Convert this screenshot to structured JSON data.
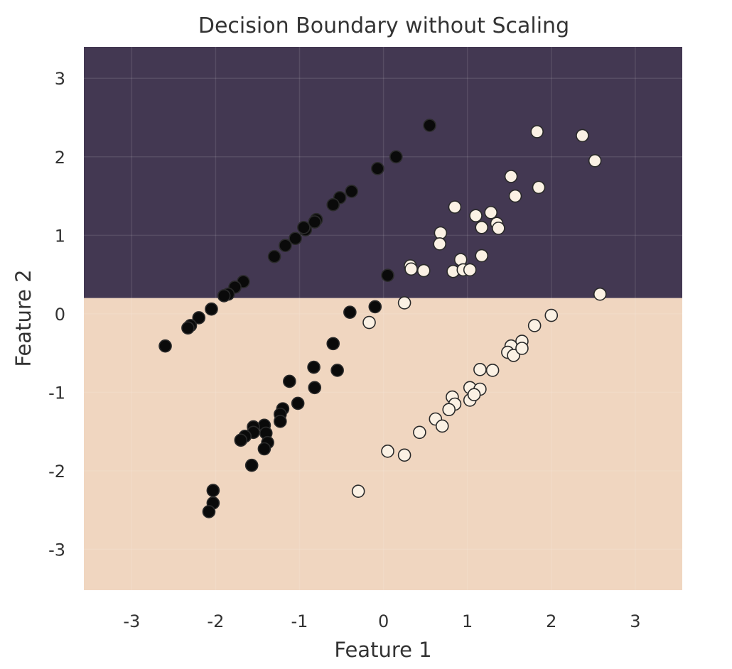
{
  "chart_data": {
    "type": "scatter",
    "title": "Decision Boundary without Scaling",
    "xlabel": "Feature 1",
    "ylabel": "Feature 2",
    "xlim": [
      -3.57,
      3.56
    ],
    "ylim": [
      -3.52,
      3.4
    ],
    "xticks": [
      -3,
      -2,
      -1,
      0,
      1,
      2,
      3
    ],
    "yticks": [
      -3,
      -2,
      -1,
      0,
      1,
      2,
      3
    ],
    "grid": true,
    "decision_boundary": {
      "feature": "Feature 2",
      "threshold": 0.2,
      "above_color": "#433852",
      "below_color": "#f0d6c0"
    },
    "colors": {
      "class_0": "#0a0a0a",
      "class_1": "#fbf1e4",
      "edge": "#2a2a2a"
    },
    "series": [
      {
        "class": 0,
        "points": [
          [
            0.55,
            2.4
          ],
          [
            0.15,
            2.0
          ],
          [
            -0.07,
            1.85
          ],
          [
            -0.38,
            1.56
          ],
          [
            -0.52,
            1.48
          ],
          [
            -0.6,
            1.39
          ],
          [
            -0.8,
            1.2
          ],
          [
            -0.82,
            1.17
          ],
          [
            -0.93,
            1.07
          ],
          [
            -0.95,
            1.1
          ],
          [
            -1.05,
            0.96
          ],
          [
            -1.17,
            0.87
          ],
          [
            -1.3,
            0.73
          ],
          [
            -1.67,
            0.41
          ],
          [
            -1.77,
            0.34
          ],
          [
            -1.85,
            0.25
          ],
          [
            -1.9,
            0.23
          ],
          [
            -2.05,
            0.06
          ],
          [
            -2.2,
            -0.05
          ],
          [
            -2.3,
            -0.15
          ],
          [
            -2.33,
            -0.18
          ],
          [
            -2.6,
            -0.41
          ],
          [
            0.05,
            0.49
          ],
          [
            -0.1,
            0.09
          ],
          [
            -0.4,
            0.02
          ],
          [
            -0.6,
            -0.38
          ],
          [
            -0.55,
            -0.72
          ],
          [
            -0.83,
            -0.68
          ],
          [
            -0.82,
            -0.94
          ],
          [
            -1.12,
            -0.86
          ],
          [
            -1.02,
            -1.14
          ],
          [
            -1.2,
            -1.21
          ],
          [
            -1.23,
            -1.28
          ],
          [
            -1.23,
            -1.37
          ],
          [
            -1.42,
            -1.42
          ],
          [
            -1.55,
            -1.44
          ],
          [
            -1.55,
            -1.51
          ],
          [
            -1.65,
            -1.56
          ],
          [
            -1.7,
            -1.61
          ],
          [
            -1.4,
            -1.52
          ],
          [
            -1.38,
            -1.64
          ],
          [
            -1.42,
            -1.72
          ],
          [
            -1.57,
            -1.93
          ],
          [
            -2.03,
            -2.25
          ],
          [
            -2.03,
            -2.41
          ],
          [
            -2.08,
            -2.52
          ]
        ]
      },
      {
        "class": 1,
        "points": [
          [
            1.83,
            2.32
          ],
          [
            2.37,
            2.27
          ],
          [
            2.52,
            1.95
          ],
          [
            1.52,
            1.75
          ],
          [
            1.57,
            1.5
          ],
          [
            1.85,
            1.61
          ],
          [
            0.85,
            1.36
          ],
          [
            1.1,
            1.25
          ],
          [
            1.28,
            1.29
          ],
          [
            1.35,
            1.15
          ],
          [
            1.37,
            1.09
          ],
          [
            1.17,
            1.1
          ],
          [
            0.68,
            1.03
          ],
          [
            0.67,
            0.89
          ],
          [
            1.17,
            0.74
          ],
          [
            0.92,
            0.69
          ],
          [
            0.32,
            0.61
          ],
          [
            0.33,
            0.57
          ],
          [
            0.48,
            0.55
          ],
          [
            0.83,
            0.54
          ],
          [
            0.95,
            0.56
          ],
          [
            1.03,
            0.56
          ],
          [
            2.58,
            0.25
          ],
          [
            0.25,
            0.14
          ],
          [
            -0.17,
            -0.11
          ],
          [
            2.0,
            -0.02
          ],
          [
            1.8,
            -0.15
          ],
          [
            1.65,
            -0.35
          ],
          [
            1.52,
            -0.41
          ],
          [
            1.48,
            -0.49
          ],
          [
            1.55,
            -0.53
          ],
          [
            1.65,
            -0.44
          ],
          [
            1.3,
            -0.72
          ],
          [
            1.15,
            -0.71
          ],
          [
            0.82,
            -1.06
          ],
          [
            0.85,
            -1.15
          ],
          [
            0.78,
            -1.22
          ],
          [
            1.03,
            -0.94
          ],
          [
            1.03,
            -1.1
          ],
          [
            1.15,
            -0.96
          ],
          [
            1.08,
            -1.03
          ],
          [
            0.62,
            -1.34
          ],
          [
            0.7,
            -1.43
          ],
          [
            0.43,
            -1.51
          ],
          [
            0.05,
            -1.75
          ],
          [
            0.25,
            -1.8
          ],
          [
            -0.3,
            -2.26
          ]
        ]
      }
    ]
  }
}
